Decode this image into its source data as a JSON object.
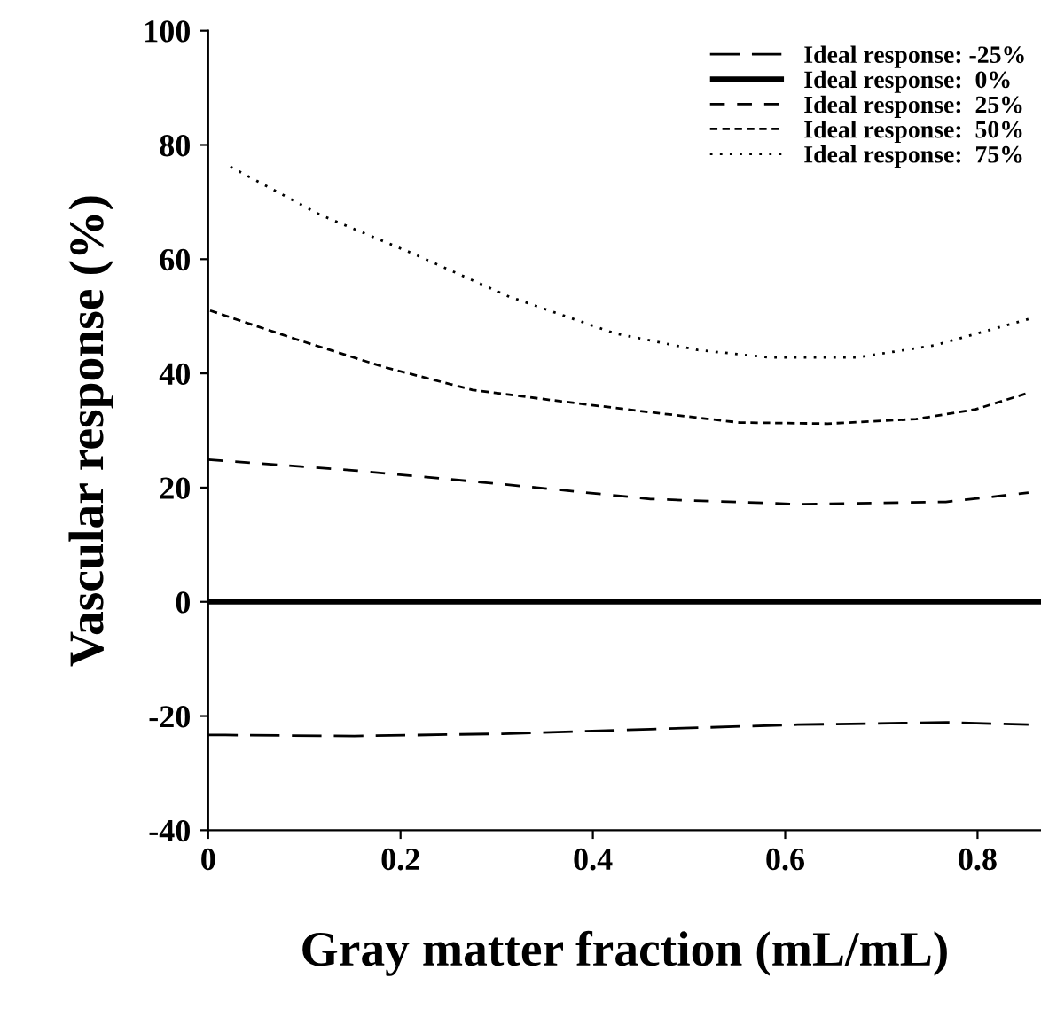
{
  "chart_data": {
    "type": "line",
    "xlabel": "Gray matter fraction (mL/mL)",
    "ylabel": "Vascular response (%)",
    "xlim": [
      0,
      0.866
    ],
    "ylim": [
      -40,
      100
    ],
    "xticks": [
      0,
      0.2,
      0.4,
      0.6,
      0.8
    ],
    "yticks": [
      -40,
      -20,
      0,
      20,
      40,
      60,
      80,
      100
    ],
    "grid": false,
    "legend": "top right",
    "marker": "none",
    "series": [
      {
        "name": "Ideal response: -25%",
        "color": "#000000",
        "line_style": "dashed",
        "x": [
          0,
          0.152,
          0.306,
          0.46,
          0.613,
          0.767,
          0.853
        ],
        "values": [
          -23.3,
          -23.5,
          -23.1,
          -22.3,
          -21.5,
          -21.1,
          -21.5
        ]
      },
      {
        "name": "Ideal response:  0%",
        "color": "#000000",
        "line_style": "solid",
        "x": [
          0,
          0.866
        ],
        "values": [
          0,
          0
        ]
      },
      {
        "name": "Ideal response:  25%",
        "color": "#000000",
        "line_style": "dashed",
        "x": [
          0,
          0.152,
          0.306,
          0.46,
          0.613,
          0.767,
          0.853
        ],
        "values": [
          24.9,
          23.0,
          20.6,
          18.0,
          17.1,
          17.5,
          19.1
        ]
      },
      {
        "name": "Ideal response:  50%",
        "color": "#000000",
        "line_style": "dotted",
        "x": [
          0.002,
          0.091,
          0.183,
          0.275,
          0.367,
          0.46,
          0.552,
          0.644,
          0.736,
          0.798,
          0.853
        ],
        "values": [
          51.0,
          46.0,
          41.1,
          37.1,
          35.1,
          33.2,
          31.4,
          31.2,
          32.0,
          33.7,
          36.6
        ]
      },
      {
        "name": "Ideal response:  75%",
        "color": "#000000",
        "line_style": "dotted",
        "x": [
          0.023,
          0.116,
          0.214,
          0.312,
          0.423,
          0.509,
          0.583,
          0.675,
          0.755,
          0.853
        ],
        "values": [
          76.2,
          67.8,
          60.9,
          53.5,
          47.0,
          44.1,
          42.8,
          42.8,
          44.9,
          49.5
        ]
      }
    ]
  }
}
